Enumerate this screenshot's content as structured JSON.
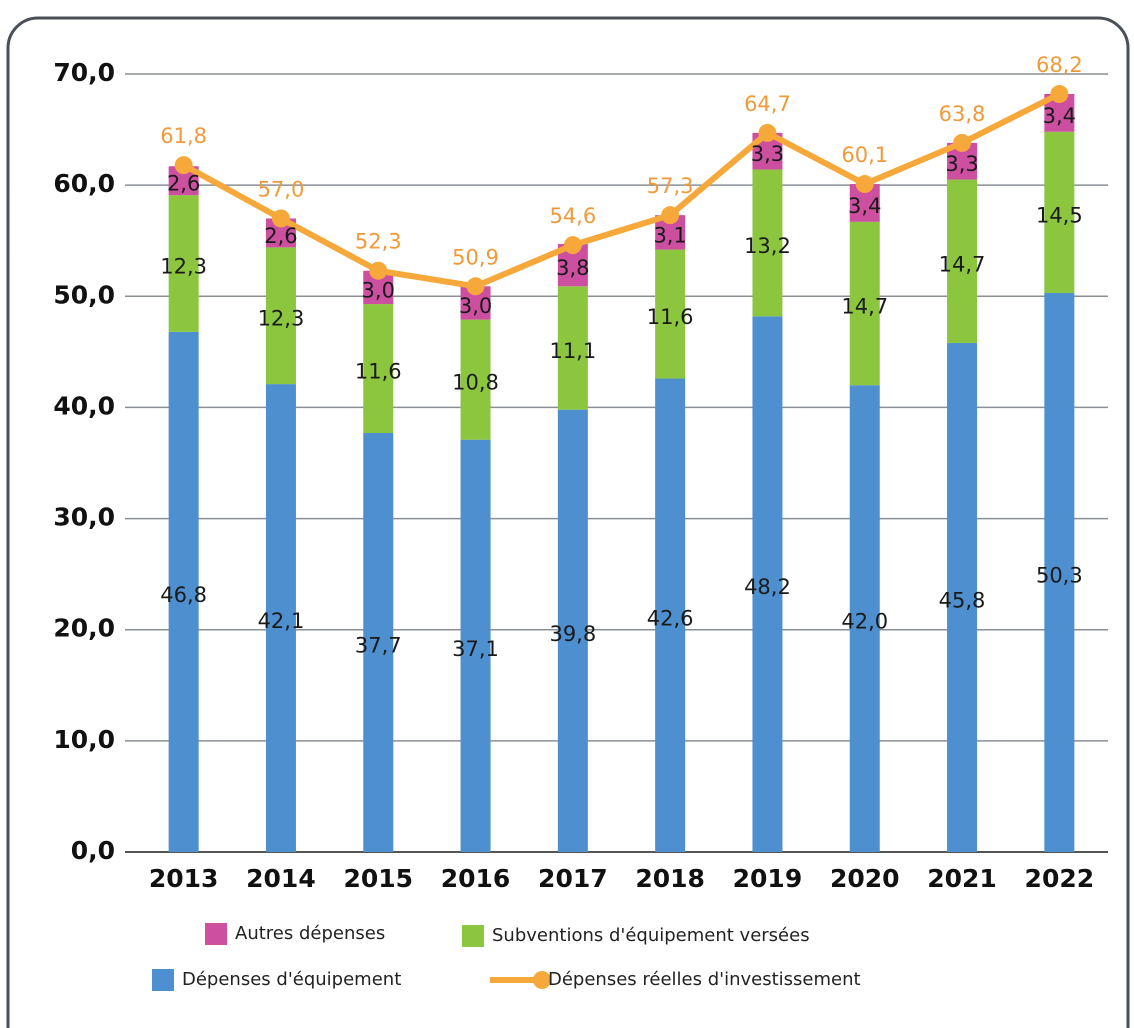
{
  "chart_data": {
    "type": "bar",
    "stacked": true,
    "grid": true,
    "categories": [
      "2013",
      "2014",
      "2015",
      "2016",
      "2017",
      "2018",
      "2019",
      "2020",
      "2021",
      "2022"
    ],
    "ylim": [
      0,
      70
    ],
    "yticks": [
      {
        "value": 0,
        "label": "0,0"
      },
      {
        "value": 10,
        "label": "10,0"
      },
      {
        "value": 20,
        "label": "20,0"
      },
      {
        "value": 30,
        "label": "30,0"
      },
      {
        "value": 40,
        "label": "40,0"
      },
      {
        "value": 50,
        "label": "50,0"
      },
      {
        "value": 60,
        "label": "60,0"
      },
      {
        "value": 70,
        "label": "70,0"
      }
    ],
    "series": [
      {
        "name": "Dépenses d'équipement",
        "color": "#4e8fcf",
        "type": "bar",
        "values": [
          46.8,
          42.1,
          37.7,
          37.1,
          39.8,
          42.6,
          48.2,
          42.0,
          45.8,
          50.3
        ],
        "value_labels": [
          "46,8",
          "42,1",
          "37,7",
          "37,1",
          "39,8",
          "42,6",
          "48,2",
          "42,0",
          "45,8",
          "50,3"
        ]
      },
      {
        "name": "Subventions d'équipement versées",
        "color": "#8cc63f",
        "type": "bar",
        "values": [
          12.3,
          12.3,
          11.6,
          10.8,
          11.1,
          11.6,
          13.2,
          14.7,
          14.7,
          14.5
        ],
        "value_labels": [
          "12,3",
          "12,3",
          "11,6",
          "10,8",
          "11,1",
          "11,6",
          "13,2",
          "14,7",
          "14,7",
          "14,5"
        ]
      },
      {
        "name": "Autres dépenses",
        "color": "#cc4fa0",
        "type": "bar",
        "values": [
          2.6,
          2.6,
          3.0,
          3.0,
          3.8,
          3.1,
          3.3,
          3.4,
          3.3,
          3.4
        ],
        "value_labels": [
          "2,6",
          "2,6",
          "3,0",
          "3,0",
          "3,8",
          "3,1",
          "3,3",
          "3,4",
          "3,3",
          "3,4"
        ]
      },
      {
        "name": "Dépenses réelles d'investissement",
        "color": "#f7a83a",
        "type": "line",
        "values": [
          61.8,
          57.0,
          52.3,
          50.9,
          54.6,
          57.3,
          64.7,
          60.1,
          63.8,
          68.2
        ],
        "value_labels": [
          "61,8",
          "57,0",
          "52,3",
          "50,9",
          "54,6",
          "57,3",
          "64,7",
          "60,1",
          "63,8",
          "68,2"
        ]
      }
    ]
  }
}
